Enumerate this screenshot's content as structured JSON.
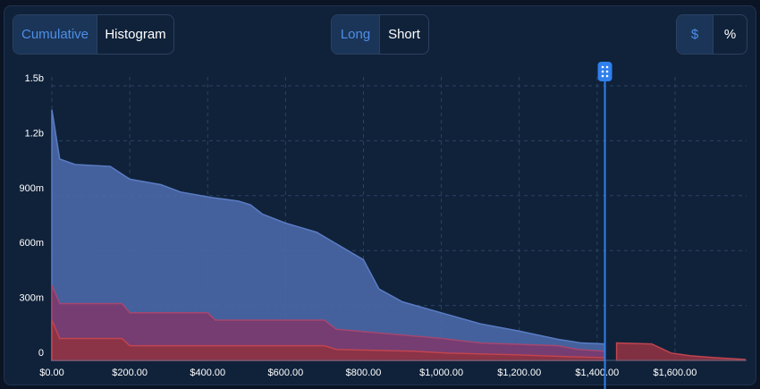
{
  "toolbar": {
    "view_toggle": {
      "options": [
        "Cumulative",
        "Histogram"
      ],
      "selected": "Cumulative"
    },
    "side_toggle": {
      "options": [
        "Long",
        "Short"
      ],
      "selected": "Long"
    },
    "unit_toggle": {
      "options": [
        "$",
        "%"
      ],
      "selected": "$"
    }
  },
  "colors": {
    "background": "#10223a",
    "accent": "#2f80ed",
    "active_text": "#4d8ee8",
    "series_blue": "#4a68a8",
    "series_purple": "#7b3a6e",
    "series_red": "#8e3243"
  },
  "slider": {
    "icon": "grip-dots-icon",
    "value": 1420
  },
  "chart_data": {
    "type": "area",
    "xlim": [
      0,
      1780
    ],
    "ylim": [
      0,
      1500000000
    ],
    "x_ticks": [
      "$0.00",
      "$200.00",
      "$400.00",
      "$600.00",
      "$800.00",
      "$1,000.00",
      "$1,200.00",
      "$1,400.00",
      "$1,600.00"
    ],
    "y_ticks": [
      "0",
      "300m",
      "600m",
      "900m",
      "1.2b",
      "1.5b"
    ],
    "grid": true,
    "series": [
      {
        "values": [
          [
            0,
            1370000000
          ],
          [
            20,
            1100000000
          ],
          [
            60,
            1070000000
          ],
          [
            150,
            1060000000
          ],
          [
            200,
            990000000
          ],
          [
            280,
            960000000
          ],
          [
            330,
            920000000
          ],
          [
            410,
            890000000
          ],
          [
            480,
            870000000
          ],
          [
            510,
            850000000
          ],
          [
            540,
            800000000
          ],
          [
            600,
            750000000
          ],
          [
            680,
            700000000
          ],
          [
            720,
            650000000
          ],
          [
            800,
            550000000
          ],
          [
            840,
            390000000
          ],
          [
            900,
            320000000
          ],
          [
            1000,
            260000000
          ],
          [
            1100,
            200000000
          ],
          [
            1200,
            160000000
          ],
          [
            1300,
            115000000
          ],
          [
            1360,
            95000000
          ],
          [
            1420,
            90000000
          ],
          [
            1420,
            0
          ]
        ]
      },
      {
        "values": [
          [
            0,
            410000000
          ],
          [
            20,
            310000000
          ],
          [
            180,
            310000000
          ],
          [
            200,
            260000000
          ],
          [
            400,
            260000000
          ],
          [
            420,
            220000000
          ],
          [
            700,
            220000000
          ],
          [
            730,
            170000000
          ],
          [
            1000,
            120000000
          ],
          [
            1100,
            95000000
          ],
          [
            1300,
            80000000
          ],
          [
            1350,
            60000000
          ],
          [
            1420,
            50000000
          ],
          [
            1420,
            0
          ]
        ]
      },
      {
        "values": [
          [
            0,
            220000000
          ],
          [
            20,
            120000000
          ],
          [
            180,
            120000000
          ],
          [
            200,
            80000000
          ],
          [
            700,
            80000000
          ],
          [
            730,
            60000000
          ],
          [
            930,
            50000000
          ],
          [
            1020,
            40000000
          ],
          [
            1200,
            30000000
          ],
          [
            1330,
            20000000
          ],
          [
            1420,
            15000000
          ],
          [
            1420,
            0
          ]
        ]
      },
      {
        "values": [
          [
            1450,
            95000000
          ],
          [
            1540,
            90000000
          ],
          [
            1560,
            70000000
          ],
          [
            1590,
            40000000
          ],
          [
            1640,
            25000000
          ],
          [
            1700,
            15000000
          ],
          [
            1780,
            5000000
          ]
        ]
      }
    ]
  }
}
